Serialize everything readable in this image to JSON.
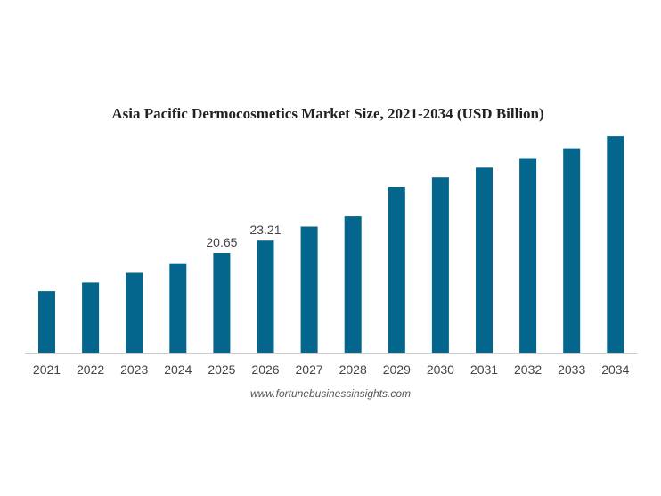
{
  "chart_data": {
    "type": "bar",
    "title": "Asia Pacific Dermocosmetics Market Size, 2021-2034 (USD Billion)",
    "xlabel": "",
    "ylabel": "",
    "categories": [
      "2021",
      "2022",
      "2023",
      "2024",
      "2025",
      "2026",
      "2027",
      "2028",
      "2029",
      "2030",
      "2031",
      "2032",
      "2033",
      "2034"
    ],
    "series": [
      {
        "values": [
          12.7,
          14.5,
          16.5,
          18.5,
          20.65,
          23.21,
          26.1,
          28.2,
          34.3,
          36.3,
          38.3,
          40.3,
          42.3,
          44.8
        ],
        "data_labels": [
          "",
          "",
          "",
          "",
          "20.65",
          "23.21",
          "",
          "",
          "",
          "",
          "",
          "",
          "",
          ""
        ]
      }
    ],
    "ylim": [
      0,
      45
    ],
    "grid": false,
    "legend": "none",
    "bar_color": "#04668c",
    "axis_color": "#cccccc"
  },
  "source": "www.fortunebusinessinsights.com"
}
